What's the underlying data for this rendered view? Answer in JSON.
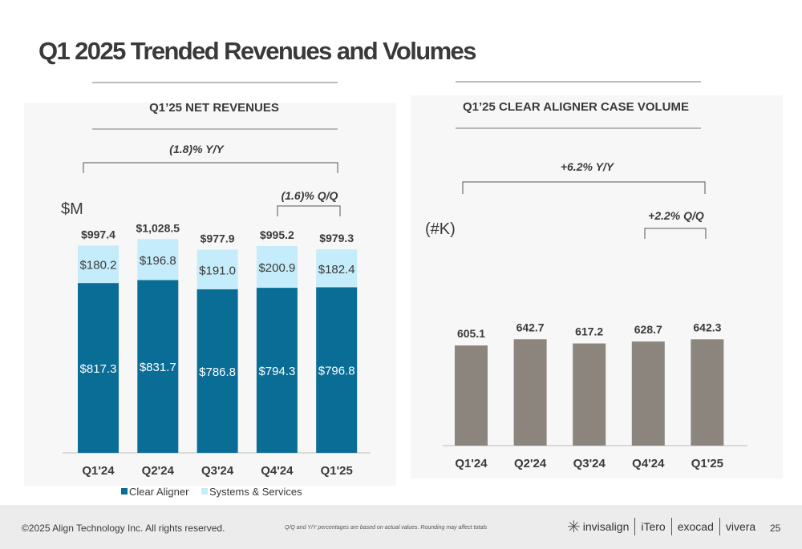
{
  "page": {
    "title": "Q1 2025 Trended Revenues and Volumes",
    "footer": {
      "copyright": "©2025 Align Technology Inc. All rights reserved.",
      "footnote": "Q/Q and Y/Y percentages are based on actual values. Rounding may affect totals",
      "brands": [
        "invisalign",
        "iTero",
        "exocad",
        "vivera"
      ],
      "page_number": "25"
    }
  },
  "colors": {
    "clear_aligner": "#0a6d96",
    "systems_services": "#c5ecfa",
    "case_volume": "#8c857d",
    "text": "#3a3a3a"
  },
  "chart_data": [
    {
      "type": "bar",
      "stacked": true,
      "title": "Q1’25 NET REVENUES",
      "unit_label": "$M",
      "categories": [
        "Q1'24",
        "Q2'24",
        "Q3'24",
        "Q4'24",
        "Q1'25"
      ],
      "series": [
        {
          "name": "Clear Aligner",
          "values": [
            817.3,
            831.7,
            786.8,
            794.3,
            796.8
          ],
          "labels": [
            "$817.3",
            "$831.7",
            "$786.8",
            "$794.3",
            "$796.8"
          ]
        },
        {
          "name": "Systems & Services",
          "values": [
            180.2,
            196.8,
            191.0,
            200.9,
            182.4
          ],
          "labels": [
            "$180.2",
            "$196.8",
            "$191.0",
            "$200.9",
            "$182.4"
          ]
        }
      ],
      "totals": [
        "$997.4",
        "$1,028.5",
        "$977.9",
        "$995.2",
        "$979.3"
      ],
      "annotations": {
        "yy": "(1.8)% Y/Y",
        "qq": "(1.6)% Q/Q"
      },
      "ylim": [
        0,
        1080
      ],
      "legend": "bottom"
    },
    {
      "type": "bar",
      "title": "Q1’25 CLEAR ALIGNER CASE VOLUME",
      "unit_label": "(#K)",
      "categories": [
        "Q1'24",
        "Q2'24",
        "Q3'24",
        "Q4'24",
        "Q1'25"
      ],
      "series": [
        {
          "values": [
            605.1,
            642.7,
            617.2,
            628.7,
            642.3
          ],
          "labels": [
            "605.1",
            "642.7",
            "617.2",
            "628.7",
            "642.3"
          ]
        }
      ],
      "annotations": {
        "yy": "+6.2% Y/Y",
        "qq": "+2.2% Q/Q"
      },
      "ylim": [
        0,
        920
      ]
    }
  ]
}
